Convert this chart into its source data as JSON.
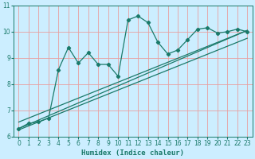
{
  "title": "",
  "xlabel": "Humidex (Indice chaleur)",
  "ylabel": "",
  "bg_color": "#cceeff",
  "line_color": "#1a7a6a",
  "grid_color": "#e8a0a0",
  "xlim": [
    -0.5,
    23.5
  ],
  "ylim": [
    6,
    11
  ],
  "xticks": [
    0,
    1,
    2,
    3,
    4,
    5,
    6,
    7,
    8,
    9,
    10,
    11,
    12,
    13,
    14,
    15,
    16,
    17,
    18,
    19,
    20,
    21,
    22,
    23
  ],
  "yticks": [
    6,
    7,
    8,
    9,
    10,
    11
  ],
  "data_x": [
    0,
    1,
    2,
    3,
    4,
    5,
    6,
    7,
    8,
    9,
    10,
    11,
    12,
    13,
    14,
    15,
    16,
    17,
    18,
    19,
    20,
    21,
    22,
    23
  ],
  "data_y": [
    6.3,
    6.5,
    6.55,
    6.7,
    8.55,
    9.4,
    8.8,
    9.2,
    8.75,
    8.75,
    8.3,
    10.45,
    10.6,
    10.35,
    9.6,
    9.15,
    9.3,
    9.7,
    10.1,
    10.15,
    9.95,
    10.0,
    10.1,
    10.0
  ],
  "line1_x": [
    0,
    23
  ],
  "line1_y": [
    6.3,
    10.05
  ],
  "line2_x": [
    0,
    23
  ],
  "line2_y": [
    6.55,
    10.05
  ],
  "line3_x": [
    0,
    23
  ],
  "line3_y": [
    6.25,
    9.75
  ]
}
